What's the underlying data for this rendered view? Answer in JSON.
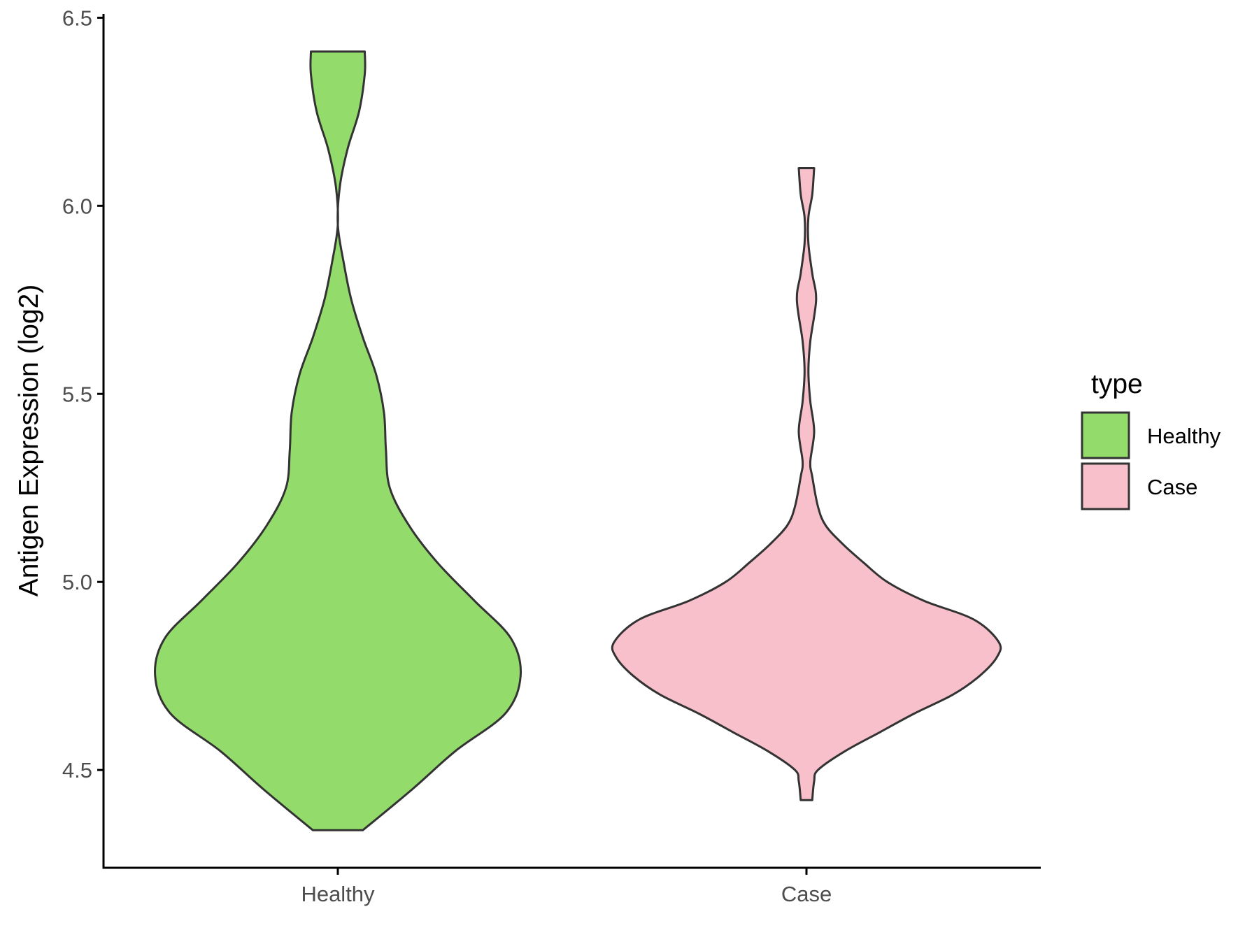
{
  "chart_data": {
    "type": "violin",
    "title": "",
    "xlabel": "",
    "ylabel": "Antigen Expression (log2)",
    "ylim": [
      4.24,
      6.51
    ],
    "yticks": [
      "4.5",
      "5.0",
      "5.5",
      "6.0",
      "6.5"
    ],
    "categories": [
      "Healthy",
      "Case"
    ],
    "legend": {
      "title": "type",
      "position": "right",
      "entries": [
        {
          "label": "Healthy",
          "color": "#93dc6b"
        },
        {
          "label": "Case",
          "color": "#f8c0cb"
        }
      ]
    },
    "series": [
      {
        "name": "Healthy",
        "color": "#93dc6b",
        "min": 4.34,
        "max": 6.41,
        "density_profile": [
          [
            4.34,
            0.13
          ],
          [
            4.45,
            0.39
          ],
          [
            4.55,
            0.61
          ],
          [
            4.65,
            0.87
          ],
          [
            4.75,
            0.95
          ],
          [
            4.85,
            0.9
          ],
          [
            4.95,
            0.71
          ],
          [
            5.05,
            0.52
          ],
          [
            5.15,
            0.37
          ],
          [
            5.25,
            0.27
          ],
          [
            5.35,
            0.25
          ],
          [
            5.45,
            0.24
          ],
          [
            5.55,
            0.2
          ],
          [
            5.65,
            0.13
          ],
          [
            5.75,
            0.07
          ],
          [
            5.85,
            0.03
          ],
          [
            5.95,
            0.0
          ],
          [
            6.05,
            0.01
          ],
          [
            6.15,
            0.05
          ],
          [
            6.25,
            0.11
          ],
          [
            6.35,
            0.14
          ],
          [
            6.41,
            0.14
          ]
        ]
      },
      {
        "name": "Case",
        "color": "#f8c0cb",
        "min": 4.42,
        "max": 6.1,
        "density_profile": [
          [
            4.42,
            0.03
          ],
          [
            4.47,
            0.04
          ],
          [
            4.5,
            0.06
          ],
          [
            4.55,
            0.2
          ],
          [
            4.6,
            0.38
          ],
          [
            4.65,
            0.56
          ],
          [
            4.7,
            0.76
          ],
          [
            4.75,
            0.9
          ],
          [
            4.8,
            0.99
          ],
          [
            4.84,
            1.0
          ],
          [
            4.9,
            0.87
          ],
          [
            4.95,
            0.61
          ],
          [
            5.0,
            0.42
          ],
          [
            5.05,
            0.3
          ],
          [
            5.1,
            0.19
          ],
          [
            5.15,
            0.1
          ],
          [
            5.2,
            0.06
          ],
          [
            5.28,
            0.03
          ],
          [
            5.32,
            0.02
          ],
          [
            5.4,
            0.04
          ],
          [
            5.48,
            0.02
          ],
          [
            5.56,
            0.01
          ],
          [
            5.64,
            0.02
          ],
          [
            5.75,
            0.05
          ],
          [
            5.82,
            0.03
          ],
          [
            5.9,
            0.01
          ],
          [
            5.97,
            0.01
          ],
          [
            6.03,
            0.03
          ],
          [
            6.1,
            0.04
          ]
        ]
      }
    ]
  }
}
